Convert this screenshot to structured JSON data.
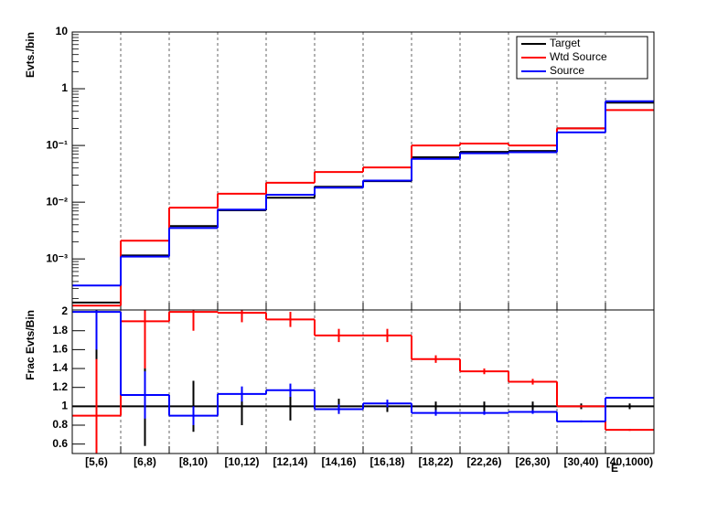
{
  "chart_data": [
    {
      "type": "step",
      "ylabel": "Evts./bin",
      "log_y": true,
      "ylim": [
        0.000126,
        10
      ],
      "yticks": [
        {
          "value": 0.001,
          "label": "10⁻³"
        },
        {
          "value": 0.01,
          "label": "10⁻²"
        },
        {
          "value": 0.1,
          "label": "10⁻¹"
        },
        1,
        10
      ],
      "x_grid": true,
      "legend": "upper right",
      "series": [
        {
          "name": "Target",
          "color": "#000000",
          "values": [
            0.00017,
            0.00115,
            0.0038,
            0.0072,
            0.012,
            0.0187,
            0.0235,
            0.062,
            0.077,
            0.08,
            0.2,
            0.57
          ]
        },
        {
          "name": "Wtd Source",
          "color": "#ff0000",
          "values": [
            0.00015,
            0.0021,
            0.008,
            0.0141,
            0.022,
            0.034,
            0.041,
            0.1,
            0.108,
            0.1,
            0.2,
            0.42
          ]
        },
        {
          "name": "Source",
          "color": "#0000ff",
          "values": [
            0.00034,
            0.0011,
            0.0035,
            0.0074,
            0.0135,
            0.018,
            0.024,
            0.058,
            0.073,
            0.076,
            0.17,
            0.6
          ]
        }
      ]
    },
    {
      "type": "step",
      "ylabel": "Frac Evts/Bin",
      "xlabel": "E",
      "ylim": [
        0.5,
        2.02
      ],
      "yticks": [
        0.6,
        0.8,
        1,
        1.2,
        1.4,
        1.6,
        1.8,
        2
      ],
      "x_grid": true,
      "categories": [
        "[5,6)",
        "[6,8)",
        "[8,10)",
        "[10,12)",
        "[12,14)",
        "[14,16)",
        "[16,18)",
        "[18,22)",
        "[22,26)",
        "[26,30)",
        "[30,40)",
        "[40,1000)"
      ],
      "series": [
        {
          "name": "Target",
          "color": "#000000",
          "values": [
            1,
            1,
            1,
            1,
            1,
            1,
            1,
            1,
            1,
            1,
            1,
            1
          ],
          "errors": [
            0.7,
            0.42,
            0.27,
            0.2,
            0.15,
            0.08,
            0.06,
            0.05,
            0.05,
            0.05,
            0.03,
            0.03
          ]
        },
        {
          "name": "Wtd Source",
          "color": "#ff0000",
          "values": [
            0.9,
            1.9,
            2.0,
            1.99,
            1.92,
            1.75,
            1.75,
            1.5,
            1.37,
            1.26,
            1.0,
            0.75
          ],
          "errors": [
            0.6,
            0.5,
            0.2,
            0.1,
            0.08,
            0.07,
            0.07,
            0.04,
            0.03,
            0.03,
            0.01,
            0.01
          ]
        },
        {
          "name": "Source",
          "color": "#0000ff",
          "values": [
            2.0,
            1.12,
            0.9,
            1.13,
            1.17,
            0.97,
            1.03,
            0.93,
            0.93,
            0.94,
            0.84,
            1.09
          ],
          "errors": [
            0.4,
            0.25,
            0.1,
            0.08,
            0.07,
            0.05,
            0.04,
            0.03,
            0.02,
            0.02,
            0.01,
            0.01
          ]
        }
      ]
    }
  ]
}
